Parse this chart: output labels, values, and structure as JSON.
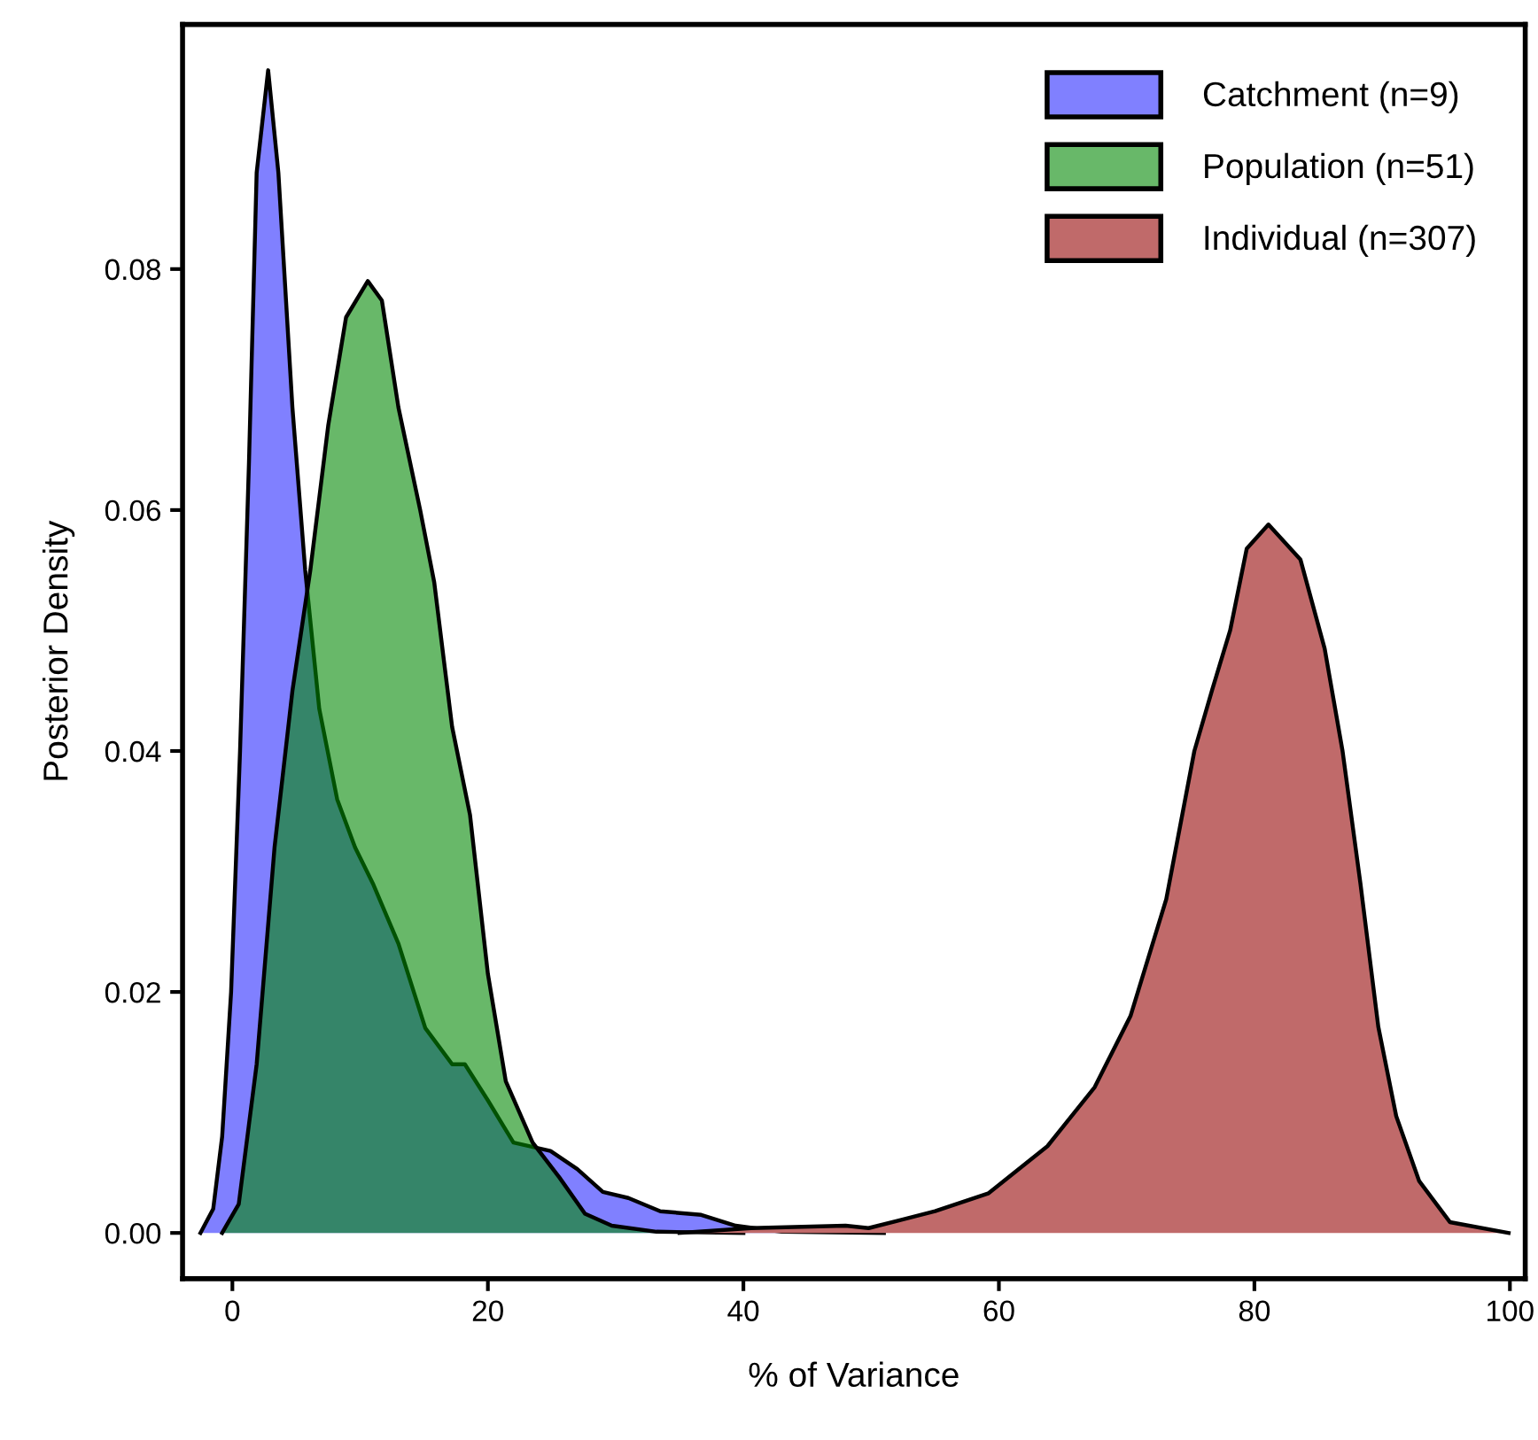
{
  "chart_data": {
    "type": "area",
    "xlabel": "% of Variance",
    "ylabel": "Posterior Density",
    "xlim": [
      -3.9,
      101.2
    ],
    "ylim": [
      -0.0038,
      0.1003
    ],
    "xticks": [
      0,
      20,
      40,
      60,
      80,
      100
    ],
    "yticks": [
      {
        "value": 0,
        "label": "0.00"
      },
      {
        "value": 0.02,
        "label": "0.02"
      },
      {
        "value": 0.04,
        "label": "0.04"
      },
      {
        "value": 0.06,
        "label": "0.06"
      },
      {
        "value": 0.08,
        "label": "0.08"
      }
    ],
    "legend": "top right",
    "grid": false,
    "series": [
      {
        "name": "Catchment (n=9)",
        "color": "#8080ff",
        "x": [
          -2.5,
          -1.5,
          -0.8,
          -0.1,
          0.6,
          1.3,
          1.9,
          2.8,
          3.6,
          4.7,
          5.7,
          6.8,
          8.2,
          9.6,
          11,
          13,
          15.1,
          17.2,
          18.2,
          20,
          22,
          24.9,
          27,
          29,
          31,
          33.5,
          36.7,
          39.4,
          43,
          51
        ],
        "values": [
          0,
          0.002,
          0.008,
          0.02,
          0.04,
          0.064,
          0.088,
          0.0965,
          0.088,
          0.0685,
          0.055,
          0.0435,
          0.036,
          0.032,
          0.029,
          0.024,
          0.017,
          0.014,
          0.014,
          0.011,
          0.0075,
          0.0068,
          0.0053,
          0.0034,
          0.0029,
          0.0018,
          0.0015,
          0.0006,
          0.0001,
          0
        ]
      },
      {
        "name": "Population (n=51)",
        "color": "#68b869",
        "x": [
          -0.8,
          0.5,
          1.9,
          3.3,
          4.7,
          6.1,
          7.5,
          8.9,
          10.6,
          11.7,
          13,
          14.7,
          15.8,
          17.2,
          18.6,
          20,
          21.4,
          23.5,
          25.6,
          27.6,
          29.7,
          33.2,
          40
        ],
        "values": [
          0,
          0.0024,
          0.014,
          0.032,
          0.045,
          0.055,
          0.067,
          0.076,
          0.079,
          0.0774,
          0.0685,
          0.06,
          0.054,
          0.042,
          0.0347,
          0.0215,
          0.0126,
          0.0075,
          0.0046,
          0.0016,
          0.0006,
          0.0001,
          0
        ]
      },
      {
        "name": "Individual (n=307)",
        "color": "#c06a6a",
        "x": [
          35,
          40.6,
          48,
          49.8,
          55,
          59.2,
          63.8,
          67.5,
          70.3,
          73.1,
          75.3,
          76.7,
          78.1,
          79.4,
          81.1,
          83.6,
          85.5,
          86.9,
          88.3,
          89.7,
          91.1,
          92.9,
          95.3,
          99.9
        ],
        "values": [
          0,
          0.0004,
          0.0006,
          0.0004,
          0.0018,
          0.0033,
          0.0072,
          0.0121,
          0.018,
          0.0277,
          0.04,
          0.0451,
          0.05,
          0.0568,
          0.0588,
          0.0559,
          0.0485,
          0.04,
          0.029,
          0.0171,
          0.0097,
          0.0043,
          0.0009,
          0
        ]
      }
    ]
  }
}
